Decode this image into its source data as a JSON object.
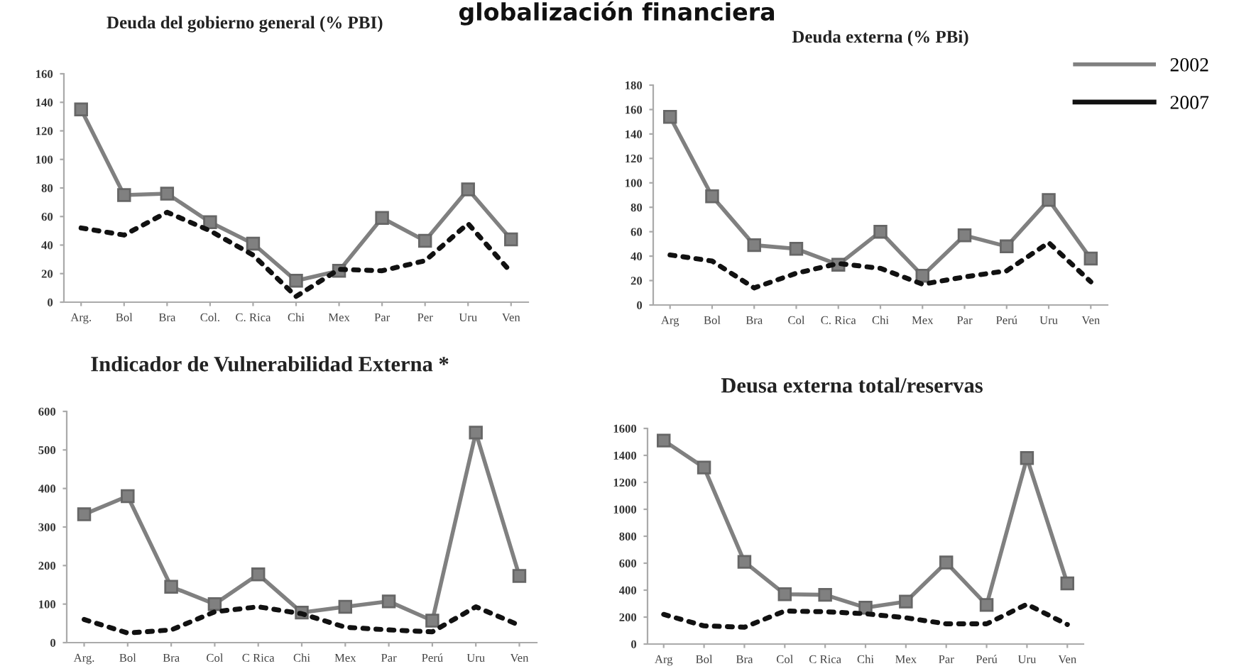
{
  "chart_data": [
    {
      "type": "line",
      "title": "Deuda del gobierno general (% PBI)",
      "annotations": [
        "globalización financiera"
      ],
      "categories": [
        "Arg.",
        "Bol",
        "Bra",
        "Col.",
        "C. Rica",
        "Chi",
        "Mex",
        "Par",
        "Per",
        "Uru",
        "Ven"
      ],
      "series": [
        {
          "color": "#808080",
          "marker": "square",
          "line_style": "solid",
          "values": [
            135,
            75,
            76,
            56,
            41,
            15,
            22,
            59,
            43,
            79,
            44
          ]
        },
        {
          "color": "#111111",
          "marker": "none",
          "line_style": "dotted",
          "values": [
            52,
            47,
            63,
            50,
            33,
            4,
            23,
            22,
            29,
            55,
            21
          ]
        }
      ],
      "ylim": [
        0,
        160
      ],
      "yticks": [
        0,
        20,
        40,
        60,
        80,
        100,
        120,
        140,
        160
      ],
      "grid": false,
      "legend": false
    },
    {
      "type": "line",
      "title": "Deuda externa (% PBi)",
      "categories": [
        "Arg",
        "Bol",
        "Bra",
        "Col",
        "C. Rica",
        "Chi",
        "Mex",
        "Par",
        "Perú",
        "Uru",
        "Ven"
      ],
      "series": [
        {
          "name": "2002",
          "color": "#808080",
          "marker": "square",
          "line_style": "solid",
          "values": [
            154,
            89,
            49,
            46,
            33,
            60,
            24,
            57,
            48,
            86,
            38
          ]
        },
        {
          "name": "2007",
          "color": "#111111",
          "marker": "none",
          "line_style": "dotted",
          "values": [
            41,
            36,
            14,
            26,
            34,
            30,
            17,
            23,
            28,
            51,
            19
          ]
        }
      ],
      "ylim": [
        0,
        180
      ],
      "yticks": [
        0,
        20,
        40,
        60,
        80,
        100,
        120,
        140,
        160,
        180
      ],
      "grid": false,
      "legend": "top right"
    },
    {
      "type": "line",
      "title": "Indicador de Vulnerabilidad Externa *",
      "categories": [
        "Arg.",
        "Bol",
        "Bra",
        "Col",
        "C Rica",
        "Chi",
        "Mex",
        "Par",
        "Perú",
        "Uru",
        "Ven"
      ],
      "series": [
        {
          "color": "#808080",
          "marker": "square",
          "line_style": "solid",
          "values": [
            333,
            380,
            145,
            100,
            177,
            78,
            93,
            107,
            57,
            545,
            173
          ]
        },
        {
          "color": "#111111",
          "marker": "none",
          "line_style": "dotted",
          "values": [
            60,
            25,
            33,
            80,
            93,
            75,
            40,
            33,
            28,
            93,
            45
          ]
        }
      ],
      "ylim": [
        0,
        600
      ],
      "yticks": [
        0,
        100,
        200,
        300,
        400,
        500,
        600
      ],
      "grid": false,
      "legend": false
    },
    {
      "type": "line",
      "title": "Deusa externa total/reservas",
      "categories": [
        "Arg",
        "Bol",
        "Bra",
        "Col",
        "C Rica",
        "Chi",
        "Mex",
        "Par",
        "Perú",
        "Uru",
        "Ven"
      ],
      "series": [
        {
          "color": "#808080",
          "marker": "square",
          "line_style": "solid",
          "values": [
            1510,
            1310,
            610,
            370,
            365,
            270,
            315,
            605,
            290,
            1380,
            450
          ]
        },
        {
          "color": "#111111",
          "marker": "none",
          "line_style": "dotted",
          "values": [
            220,
            135,
            125,
            245,
            240,
            225,
            195,
            150,
            150,
            295,
            145
          ]
        }
      ],
      "ylim": [
        0,
        1600
      ],
      "yticks": [
        0,
        200,
        400,
        600,
        800,
        1000,
        1200,
        1400,
        1600
      ],
      "grid": false,
      "legend": false
    }
  ]
}
